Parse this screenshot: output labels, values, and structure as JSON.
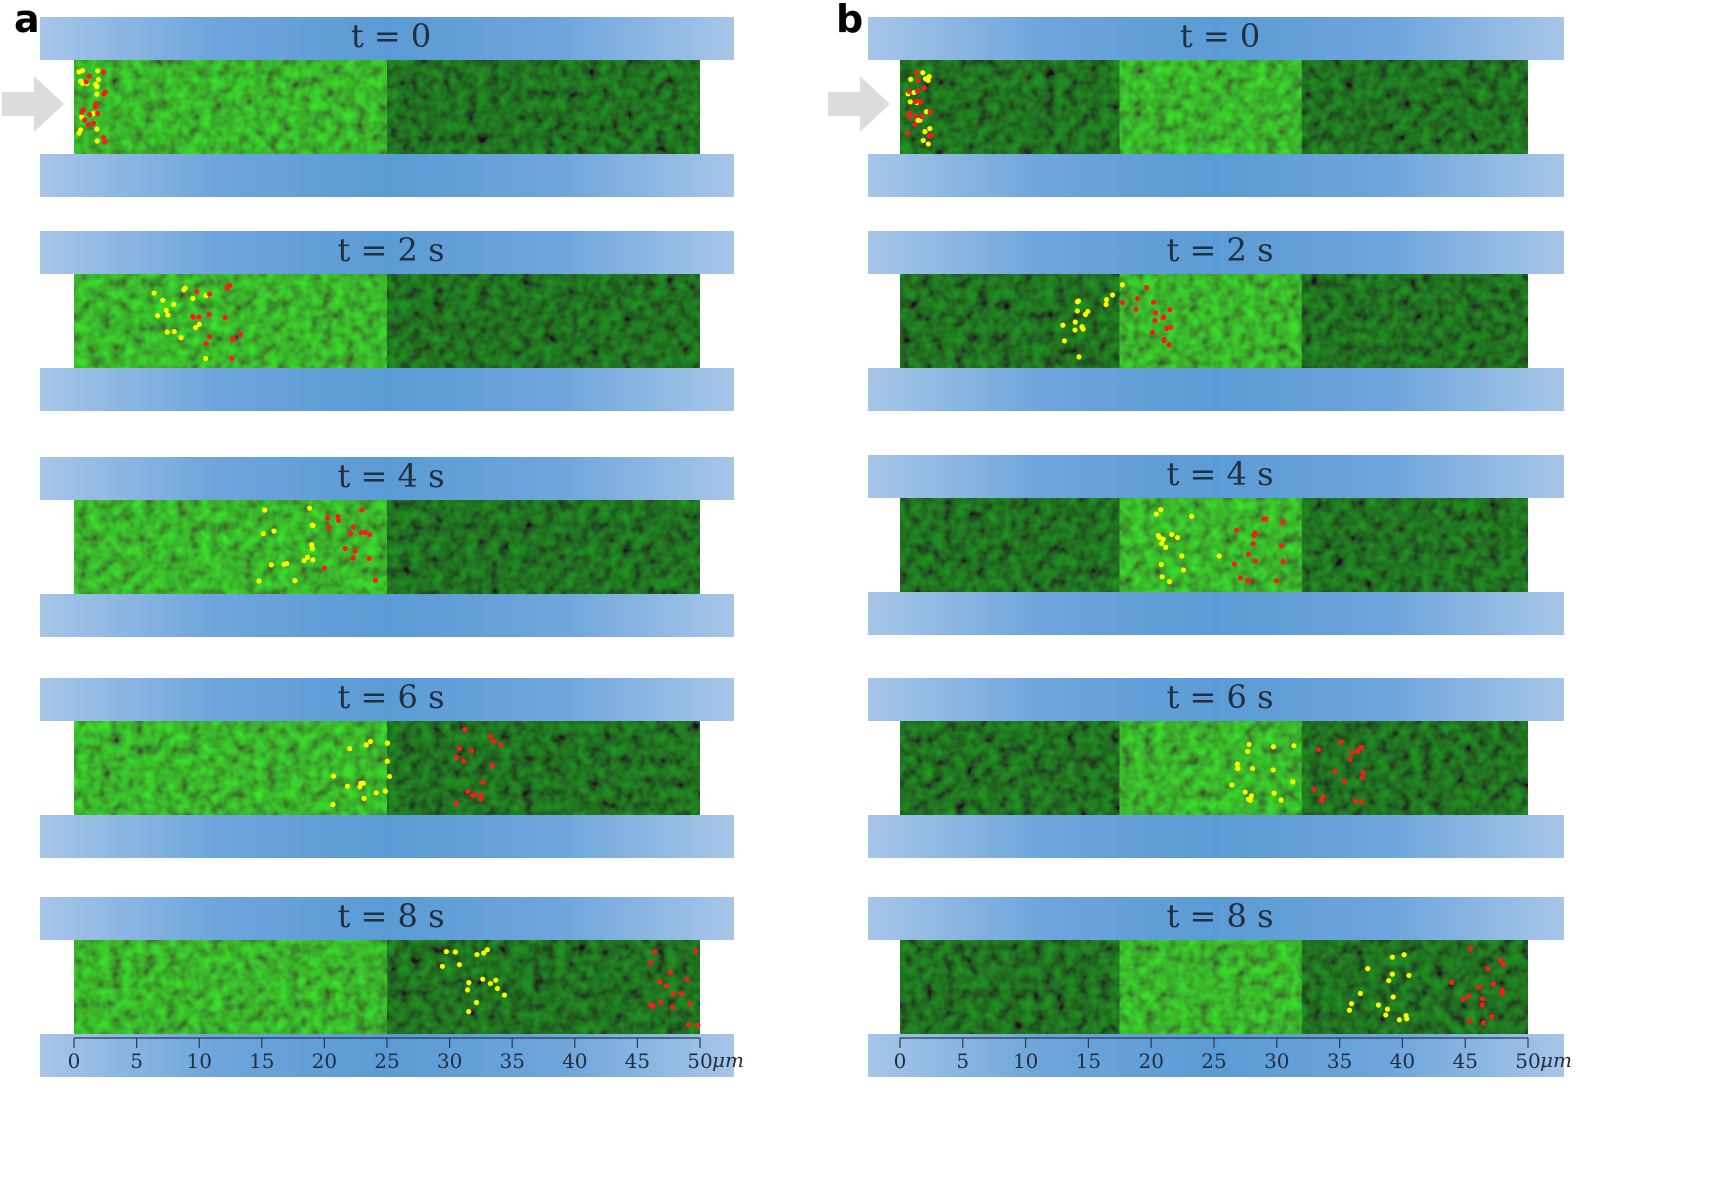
{
  "panels": [
    {
      "label": "a",
      "regions": [
        {
          "from": 0,
          "to": 25,
          "brightness": "bright"
        },
        {
          "from": 25,
          "to": 50,
          "brightness": "dim"
        }
      ],
      "frames": [
        {
          "time": "t = 0",
          "yellow_center_um": 1.0,
          "red_center_um": 1.5
        },
        {
          "time": "t = 2 s",
          "yellow_center_um": 8.5,
          "red_center_um": 11.5
        },
        {
          "time": "t = 4 s",
          "yellow_center_um": 17.0,
          "red_center_um": 22.0
        },
        {
          "time": "t = 6 s",
          "yellow_center_um": 23.0,
          "red_center_um": 32.5
        },
        {
          "time": "t = 8 s",
          "yellow_center_um": 32.0,
          "red_center_um": 48.0
        }
      ]
    },
    {
      "label": "b",
      "regions": [
        {
          "from": 0,
          "to": 17.5,
          "brightness": "dim"
        },
        {
          "from": 17.5,
          "to": 32,
          "brightness": "bright"
        },
        {
          "from": 32,
          "to": 50,
          "brightness": "dim"
        }
      ],
      "frames": [
        {
          "time": "t = 0",
          "yellow_center_um": 1.5,
          "red_center_um": 1.5
        },
        {
          "time": "t = 2 s",
          "yellow_center_um": 15.5,
          "red_center_um": 19.5
        },
        {
          "time": "t = 4 s",
          "yellow_center_um": 23.0,
          "red_center_um": 28.5
        },
        {
          "time": "t = 6 s",
          "yellow_center_um": 29.0,
          "red_center_um": 35.0
        },
        {
          "time": "t = 8 s",
          "yellow_center_um": 38.0,
          "red_center_um": 46.0
        }
      ]
    }
  ],
  "axis": {
    "ticks": [
      "0",
      "5",
      "10",
      "15",
      "20",
      "25",
      "30",
      "35",
      "40",
      "45",
      "50"
    ],
    "unit": "μm"
  },
  "flow_arrow": "right-arrow-icon",
  "colors": {
    "channel_wall": "#5b9bd5",
    "tissue_bright": "#2e8a1e",
    "tissue_dim": "#0d3a0c",
    "yellow_cells": "#ffff00",
    "red_cells": "#ff1a1a",
    "arrow": "#dcdcdc"
  }
}
